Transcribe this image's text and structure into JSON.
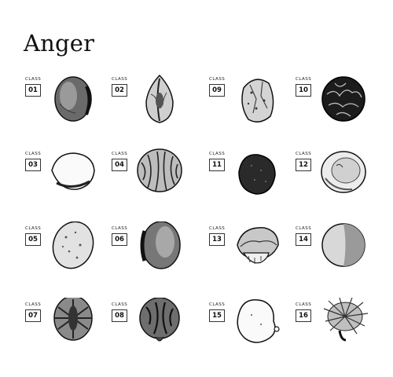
{
  "title": "Anger",
  "class_label": "CLASS",
  "items": [
    {
      "num": "01",
      "icon": "stone-icon"
    },
    {
      "num": "02",
      "icon": "peach-pit-icon"
    },
    {
      "num": "09",
      "icon": "cracked-seed-icon"
    },
    {
      "num": "10",
      "icon": "veined-nut-icon"
    },
    {
      "num": "03",
      "icon": "smooth-seed-icon"
    },
    {
      "num": "04",
      "icon": "walnut-icon"
    },
    {
      "num": "11",
      "icon": "dark-seed-icon"
    },
    {
      "num": "12",
      "icon": "open-shell-icon"
    },
    {
      "num": "05",
      "icon": "speckled-stone-icon"
    },
    {
      "num": "06",
      "icon": "stone-icon"
    },
    {
      "num": "13",
      "icon": "capped-seed-icon"
    },
    {
      "num": "14",
      "icon": "round-seed-icon"
    },
    {
      "num": "07",
      "icon": "thorny-seed-icon"
    },
    {
      "num": "08",
      "icon": "walnut-icon"
    },
    {
      "num": "15",
      "icon": "lumpy-seed-icon"
    },
    {
      "num": "16",
      "icon": "spiky-burr-icon"
    }
  ]
}
